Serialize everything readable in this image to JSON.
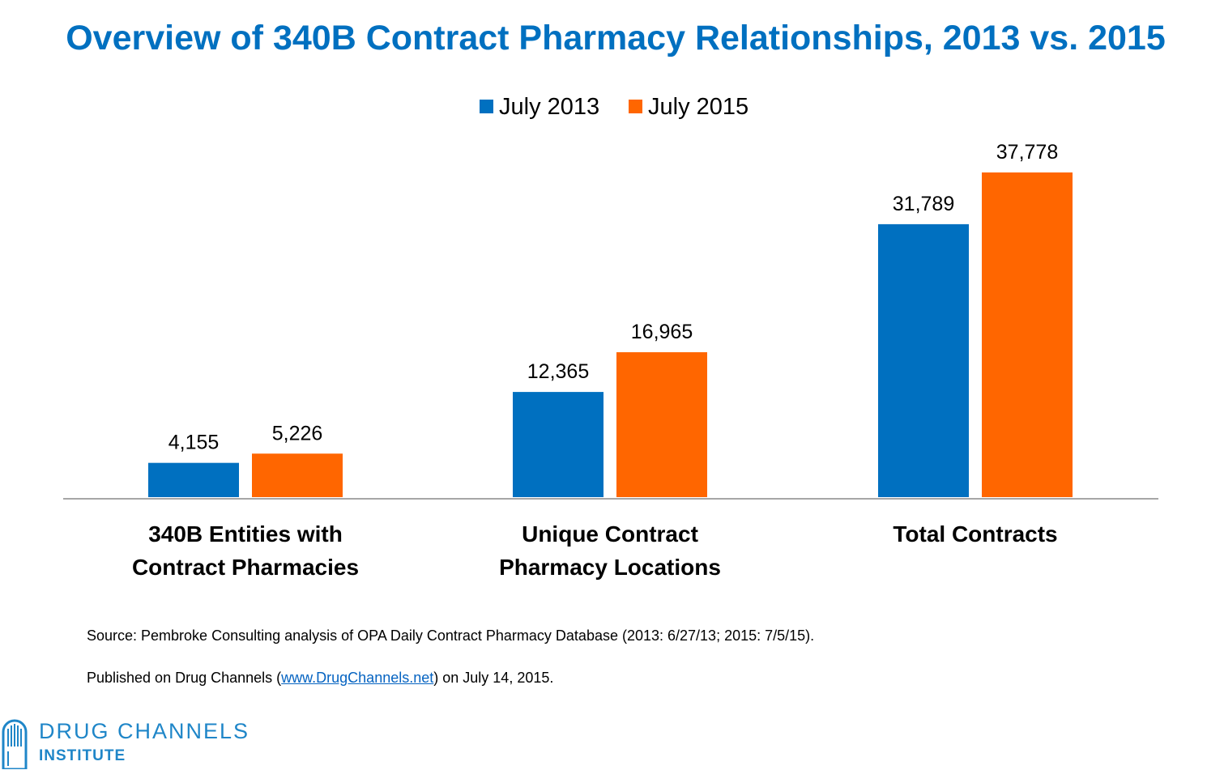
{
  "chart_data": {
    "type": "bar",
    "title": "Overview of 340B Contract Pharmacy Relationships, 2013 vs. 2015",
    "categories": [
      [
        "340B Entities with",
        "Contract Pharmacies"
      ],
      [
        "Unique Contract",
        "Pharmacy Locations"
      ],
      [
        "Total Contracts"
      ]
    ],
    "series": [
      {
        "name": "July 2013",
        "color": "#0070C0",
        "values": [
          4155,
          12365,
          31789
        ],
        "labels": [
          "4,155",
          "12,365",
          "31,789"
        ]
      },
      {
        "name": "July 2015",
        "color": "#FF6600",
        "values": [
          5226,
          16965,
          37778
        ],
        "labels": [
          "5,226",
          "16,965",
          "37,778"
        ]
      }
    ],
    "ylim": [
      0,
      37778
    ],
    "grid": false,
    "legend_position": "top-center"
  },
  "notes": {
    "source": "Source: Pembroke Consulting analysis of OPA Daily Contract Pharmacy Database (2013: 6/27/13; 2015: 7/5/15).",
    "published_prefix": "Published on Drug Channels (",
    "published_link": "www.DrugChannels.net",
    "published_suffix": ") on July 14, 2015."
  },
  "logo": {
    "line1": "DRUG CHANNELS",
    "line2": "INSTITUTE",
    "icon": "drug-channels-pill-icon",
    "color": "#1F86C8"
  }
}
